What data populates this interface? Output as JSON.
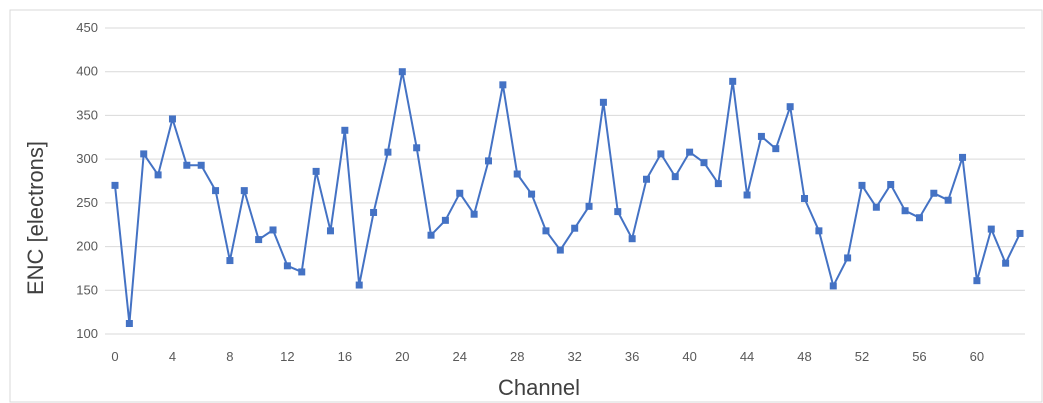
{
  "chart_data": {
    "type": "line",
    "title": "",
    "xlabel": "Channel",
    "ylabel": "ENC [electrons]",
    "xlim": [
      0,
      63
    ],
    "ylim": [
      100,
      450
    ],
    "x_ticks": [
      0,
      4,
      8,
      12,
      16,
      20,
      24,
      28,
      32,
      36,
      40,
      44,
      48,
      52,
      56,
      60
    ],
    "y_ticks": [
      100,
      150,
      200,
      250,
      300,
      350,
      400,
      450
    ],
    "grid": "horizontal",
    "legend": "none",
    "series": [
      {
        "color": "#4472C4",
        "marker": "square",
        "x": [
          0,
          1,
          2,
          3,
          4,
          5,
          6,
          7,
          8,
          9,
          10,
          11,
          12,
          13,
          14,
          15,
          16,
          17,
          18,
          19,
          20,
          21,
          22,
          23,
          24,
          25,
          26,
          27,
          28,
          29,
          30,
          31,
          32,
          33,
          34,
          35,
          36,
          37,
          38,
          39,
          40,
          41,
          42,
          43,
          44,
          45,
          46,
          47,
          48,
          49,
          50,
          51,
          52,
          53,
          54,
          55,
          56,
          57,
          58,
          59,
          60,
          61,
          62,
          63
        ],
        "values": [
          270,
          112,
          306,
          282,
          346,
          293,
          293,
          264,
          184,
          264,
          208,
          219,
          178,
          171,
          286,
          218,
          333,
          156,
          239,
          308,
          400,
          313,
          213,
          230,
          261,
          237,
          298,
          385,
          283,
          260,
          218,
          196,
          221,
          246,
          365,
          240,
          209,
          277,
          306,
          280,
          308,
          296,
          272,
          389,
          259,
          326,
          312,
          360,
          255,
          218,
          155,
          187,
          270,
          245,
          271,
          241,
          233,
          261,
          253,
          302,
          161,
          220,
          181,
          215
        ]
      }
    ]
  }
}
